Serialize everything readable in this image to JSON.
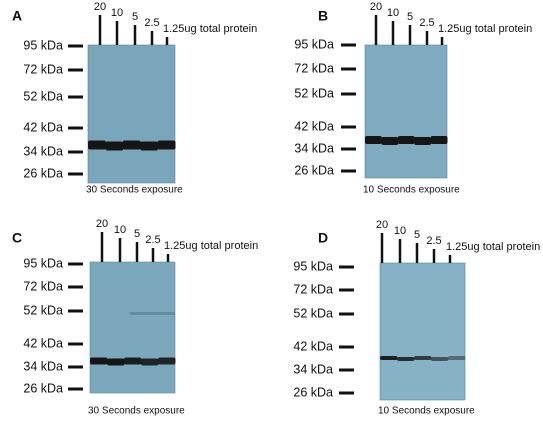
{
  "panels": [
    {
      "label": "A",
      "lanes": [
        "20",
        "10",
        "5",
        "2.5",
        "1.25ug total protein"
      ],
      "markers": [
        "95 kDa",
        "72 kDa",
        "52 kDa",
        "42 kDa",
        "34 kDa",
        "26 kDa"
      ],
      "caption": "30 Seconds exposure"
    },
    {
      "label": "B",
      "lanes": [
        "20",
        "10",
        "5",
        "2.5",
        "1.25ug total protein"
      ],
      "markers": [
        "95 kDa",
        "72 kDa",
        "52 kDa",
        "42 kDa",
        "34 kDa",
        "26 kDa"
      ],
      "caption": "10 Seconds exposure"
    },
    {
      "label": "C",
      "lanes": [
        "20",
        "10",
        "5",
        "2.5",
        "1.25ug total protein"
      ],
      "markers": [
        "95 kDa",
        "72 kDa",
        "52 kDa",
        "42 kDa",
        "34 kDa",
        "26 kDa"
      ],
      "caption": "30 Seconds exposure"
    },
    {
      "label": "D",
      "lanes": [
        "20",
        "10",
        "5",
        "2.5",
        "1.25ug total protein"
      ],
      "markers": [
        "95 kDa",
        "72 kDa",
        "52 kDa",
        "42 kDa",
        "34 kDa",
        "26 kDa"
      ],
      "caption": "10 Seconds exposure"
    }
  ]
}
